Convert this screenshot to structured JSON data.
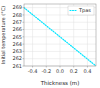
{
  "chart_data": {
    "type": "line",
    "x": [
      -0.525,
      0.525
    ],
    "series": [
      {
        "name": "Tpas",
        "color": "#00e5ff",
        "line_style": "dotted",
        "values": [
          269.0,
          261.0
        ]
      }
    ],
    "xlabel": "Thickness (m)",
    "ylabel": "Initial temperature (°C)",
    "xlim": [
      -0.525,
      0.525
    ],
    "ylim": [
      261.0,
      269.5
    ],
    "xticks": [
      -0.4,
      -0.2,
      {
        "value": 0.0,
        "label": "0.0"
      },
      0.2,
      0.4
    ],
    "yticks": [
      261.0,
      262.0,
      263.0,
      264.0,
      265.0,
      266.0,
      267.0,
      268.0,
      269.0
    ],
    "grid": true,
    "legend": "upper right"
  }
}
